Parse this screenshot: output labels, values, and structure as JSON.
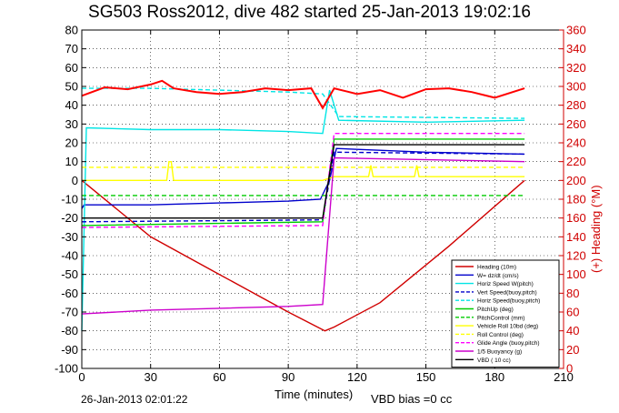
{
  "title": "SG503 Ross2012, dive 482 started 25-Jan-2013 19:02:16",
  "footer_left": "26-Jan-2013 02:01:22",
  "vbd_bias": "VBD bias =0 cc",
  "chart_data": {
    "type": "line",
    "xlabel": "Time (minutes)",
    "ylabel_right": "(+) Heading (°M)",
    "xlim": [
      0,
      210
    ],
    "ylim_left": [
      -100,
      80
    ],
    "ylim_right": [
      0,
      360
    ],
    "x_ticks": [
      "0",
      "30",
      "60",
      "90",
      "120",
      "150",
      "180",
      "210"
    ],
    "y_ticks_left": [
      "80",
      "70",
      "60",
      "50",
      "40",
      "30",
      "20",
      "10",
      "0",
      "-10",
      "-20",
      "-30",
      "-40",
      "-50",
      "-60",
      "-70",
      "-80",
      "-90",
      "-100"
    ],
    "y_ticks_right": [
      "360",
      "340",
      "320",
      "300",
      "280",
      "260",
      "240",
      "220",
      "200",
      "180",
      "160",
      "140",
      "120",
      "100",
      "80",
      "60",
      "40",
      "20",
      "0"
    ],
    "grid": true,
    "legend_position": "bottom-right",
    "series": [
      {
        "name": "Heading (10m)",
        "color": "#d00000",
        "style": "solid",
        "axis": "left",
        "x": [
          0,
          30,
          60,
          90,
          106,
          110,
          130,
          160,
          193
        ],
        "y": [
          0,
          -30,
          -50,
          -70,
          -80,
          -78,
          -65,
          -35,
          0
        ]
      },
      {
        "name": "W= dz/dt (cm/s)",
        "color": "#0000cc",
        "style": "solid",
        "axis": "left",
        "x": [
          0,
          1,
          30,
          60,
          90,
          104,
          108,
          111,
          150,
          193
        ],
        "y": [
          -15,
          -13,
          -13,
          -12,
          -11,
          -10,
          0,
          17,
          15,
          14
        ]
      },
      {
        "name": "Horiz Speed W(pitch)",
        "color": "#00e5e5",
        "style": "solid",
        "axis": "left",
        "x": [
          0,
          2,
          30,
          60,
          90,
          105,
          108,
          112,
          150,
          193
        ],
        "y": [
          -80,
          28,
          27,
          27,
          26,
          25,
          48,
          32,
          31,
          32
        ]
      },
      {
        "name": "Vert Speed(buoy,pitch)",
        "color": "#0000cc",
        "style": "dashed",
        "axis": "left",
        "x": [
          0,
          105,
          110,
          193
        ],
        "y": [
          -22,
          -21,
          15,
          14
        ]
      },
      {
        "name": "Horiz Speed(buoy,pitch)",
        "color": "#00e5e5",
        "style": "dashed",
        "axis": "left",
        "x": [
          0,
          30,
          60,
          90,
          105,
          112,
          193
        ],
        "y": [
          49,
          49,
          48,
          47,
          46,
          34,
          33
        ]
      },
      {
        "name": "PitchUp (deg)",
        "color": "#00cc00",
        "style": "solid",
        "axis": "left",
        "x": [
          0,
          105,
          110,
          193
        ],
        "y": [
          -24,
          -22,
          22,
          22
        ]
      },
      {
        "name": "PitchControl (mm)",
        "color": "#00cc00",
        "style": "dashed",
        "axis": "left",
        "x": [
          0,
          193
        ],
        "y": [
          -8,
          -8
        ]
      },
      {
        "name": "Vehicle Roll 10bd (deg)",
        "color": "#ffff00",
        "style": "solid",
        "axis": "left",
        "x": [
          0,
          37,
          38,
          39,
          40,
          105,
          110,
          125,
          126,
          127,
          145,
          146,
          147,
          193
        ],
        "y": [
          0,
          0,
          10,
          10,
          0,
          0,
          2,
          2,
          8,
          2,
          2,
          8,
          2,
          2
        ]
      },
      {
        "name": "Roll Control (deg)",
        "color": "#ffff00",
        "style": "dashed",
        "axis": "left",
        "x": [
          0,
          193
        ],
        "y": [
          7,
          7
        ]
      },
      {
        "name": "Glide Angle (buoy,pitch)",
        "color": "#ff00ff",
        "style": "dashed",
        "axis": "left",
        "x": [
          0,
          105,
          110,
          193
        ],
        "y": [
          -25,
          -24,
          25,
          25
        ]
      },
      {
        "name": "1/5 Buoyancy (g)",
        "color": "#cc00cc",
        "style": "solid",
        "axis": "left",
        "x": [
          0,
          30,
          60,
          90,
          105,
          110,
          193
        ],
        "y": [
          -71,
          -69,
          -68,
          -67,
          -66,
          12,
          10
        ]
      },
      {
        "name": "VBD ( 10 cc)",
        "color": "#000000",
        "style": "solid",
        "axis": "left",
        "x": [
          0,
          105,
          110,
          193
        ],
        "y": [
          -20,
          -20,
          19,
          19
        ]
      },
      {
        "name": "",
        "color": "#ff0000",
        "style": "solid",
        "axis": "right",
        "x": [
          0,
          10,
          20,
          30,
          35,
          40,
          50,
          60,
          70,
          80,
          90,
          100,
          105,
          110,
          120,
          130,
          140,
          150,
          160,
          170,
          180,
          193
        ],
        "y": [
          290,
          299,
          297,
          302,
          306,
          298,
          294,
          292,
          294,
          298,
          296,
          298,
          277,
          298,
          292,
          296,
          288,
          297,
          298,
          294,
          288,
          298
        ]
      }
    ]
  }
}
